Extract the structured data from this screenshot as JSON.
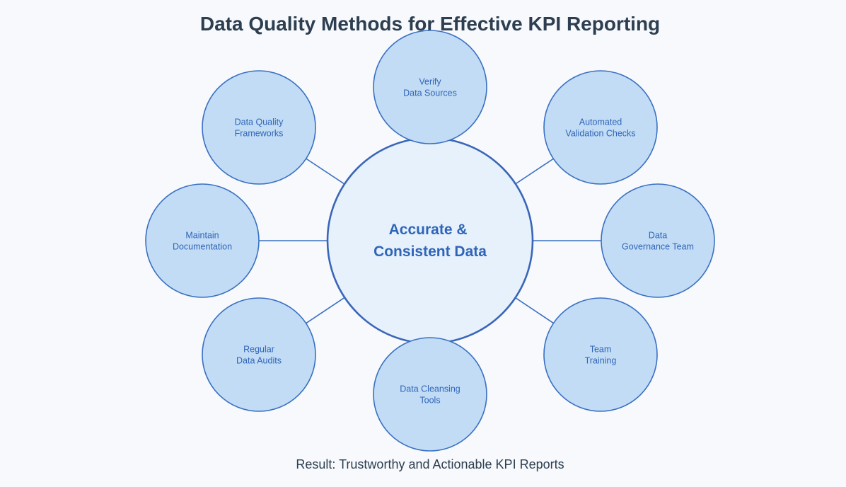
{
  "title": "Data Quality Methods for Effective KPI Reporting",
  "center": {
    "lines": [
      "Accurate &",
      "Consistent Data"
    ]
  },
  "methods": [
    {
      "lines": [
        "Verify",
        "Data Sources"
      ]
    },
    {
      "lines": [
        "Automated",
        "Validation Checks"
      ]
    },
    {
      "lines": [
        "Data",
        "Governance Team"
      ]
    },
    {
      "lines": [
        "Team",
        "Training"
      ]
    },
    {
      "lines": [
        "Data Cleansing",
        "Tools"
      ]
    },
    {
      "lines": [
        "Regular",
        "Data Audits"
      ]
    },
    {
      "lines": [
        "Maintain",
        "Documentation"
      ]
    },
    {
      "lines": [
        "Data Quality",
        "Frameworks"
      ]
    }
  ],
  "footer": "Result: Trustworthy and Actionable KPI Reports",
  "colors": {
    "background": "#f7f9fc",
    "node_fill": "#c2dcf5",
    "center_fill": "#e6f1fc",
    "stroke": "#3a70c2",
    "text": "#2f65b8",
    "title": "#2c3e50"
  }
}
